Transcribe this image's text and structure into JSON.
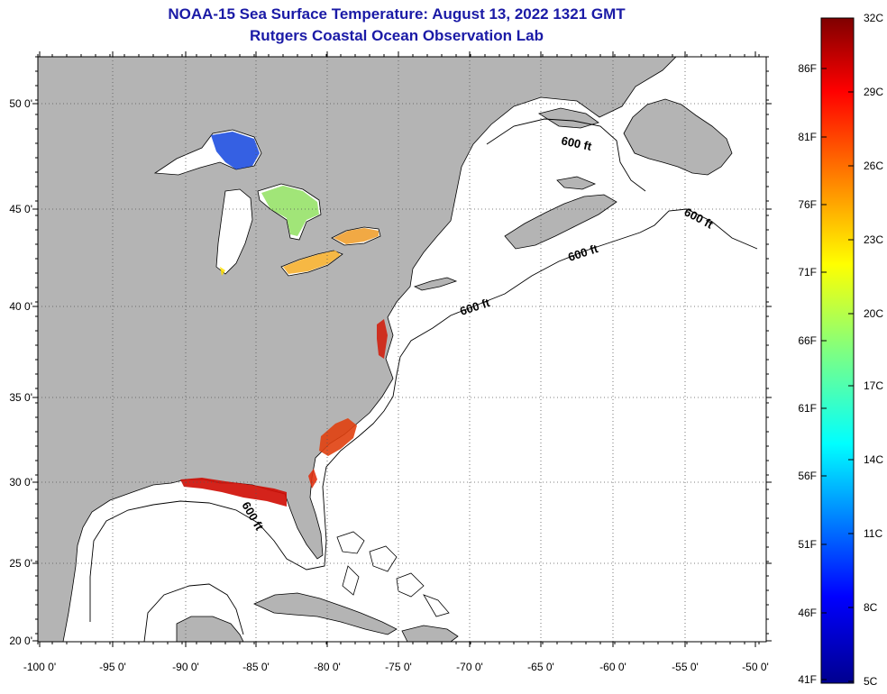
{
  "title_line1": "NOAA-15 Sea Surface Temperature:  August 13, 2022 1321 GMT",
  "title_line2": "Rutgers Coastal Ocean Observation Lab",
  "map": {
    "lon_range": [
      -100,
      -50
    ],
    "lat_range": [
      20,
      52.5
    ],
    "x_ticks": [
      "-100 0'",
      "-95 0'",
      "-90 0'",
      "-85 0'",
      "-80 0'",
      "-75 0'",
      "-70 0'",
      "-65 0'",
      "-60 0'",
      "-55 0'",
      "-50 0'"
    ],
    "y_ticks": [
      "50 0'",
      "45 0'",
      "40 0'",
      "35 0'",
      "30 0'",
      "25 0'",
      "20 0'"
    ],
    "contour_labels": [
      "600 ft",
      "600 ft",
      "600 ft",
      "600 ft",
      "600 ft"
    ],
    "grid": true,
    "land_color": "#b4b4b4",
    "ocean_color": "#ffffff"
  },
  "colorbar": {
    "celsius_labels": [
      "32C",
      "29C",
      "26C",
      "23C",
      "20C",
      "17C",
      "14C",
      "11C",
      "8C",
      "5C"
    ],
    "fahrenheit_labels": [
      "86F",
      "81F",
      "76F",
      "71F",
      "66F",
      "61F",
      "56F",
      "51F",
      "46F",
      "41F"
    ],
    "range_c": [
      5,
      32
    ],
    "colors": [
      "#7f0000",
      "#ff0000",
      "#ff8000",
      "#ffff00",
      "#80ff80",
      "#00ffff",
      "#0080ff",
      "#0000ff",
      "#00008f"
    ]
  }
}
